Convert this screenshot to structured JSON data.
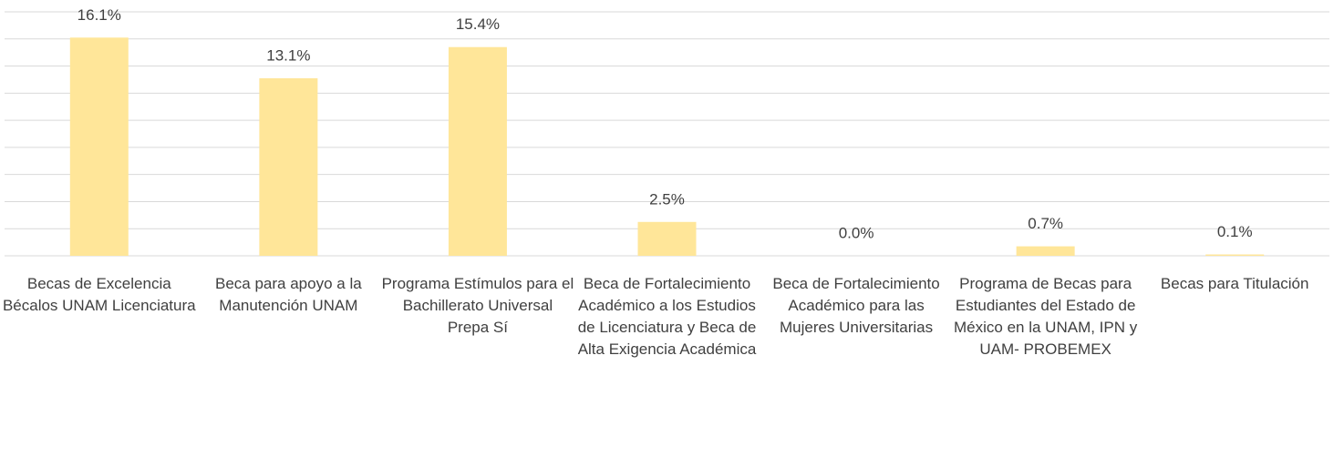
{
  "chart_data": {
    "type": "bar",
    "categories": [
      "Becas de Excelencia Bécalos UNAM Licenciatura",
      "Beca para apoyo a la Manutención UNAM",
      "Programa Estímulos para el Bachillerato Universal Prepa Sí",
      "Beca de Fortalecimiento Académico a los Estudios de Licenciatura y Beca de Alta Exigencia Académica",
      "Beca de Fortalecimiento Académico para las Mujeres Universitarias",
      "Programa de Becas para Estudiantes del Estado de México en la UNAM, IPN y UAM- PROBEMEX",
      "Becas para Titulación"
    ],
    "values": [
      16.1,
      13.1,
      15.4,
      2.5,
      0.0,
      0.7,
      0.1
    ],
    "value_labels": [
      "16.1%",
      "13.1%",
      "15.4%",
      "2.5%",
      "0.0%",
      "0.7%",
      "0.1%"
    ],
    "color": "#ffe699",
    "ylim": [
      0,
      18
    ],
    "yticks": [
      0,
      2,
      4,
      6,
      8,
      10,
      12,
      14,
      16,
      18
    ],
    "grid": true
  }
}
